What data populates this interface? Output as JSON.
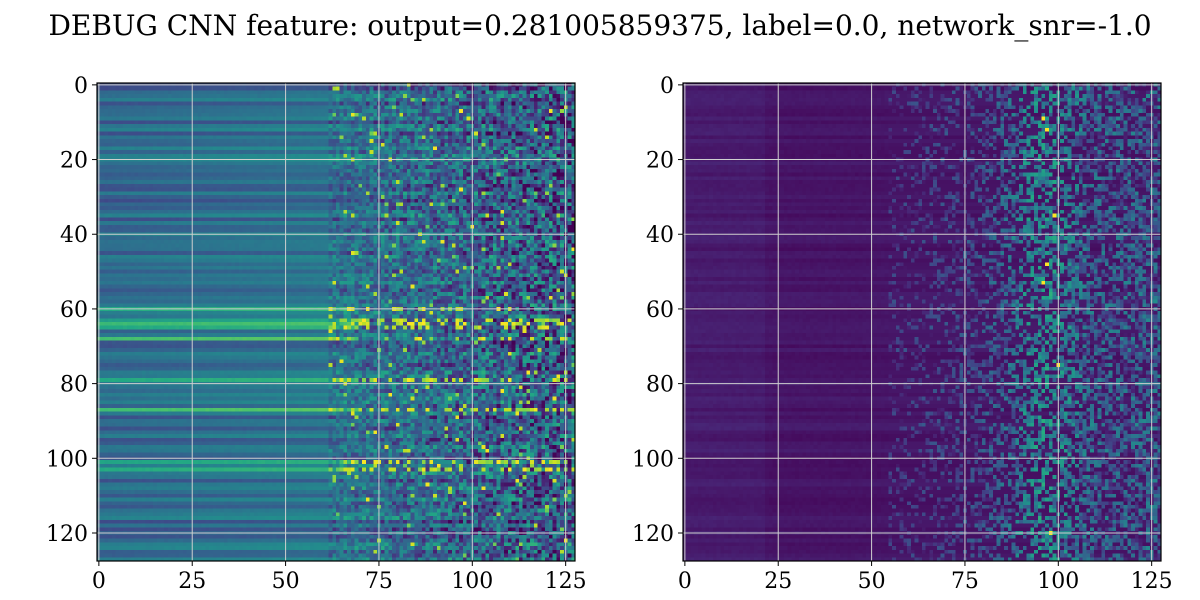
{
  "figure": {
    "title": "DEBUG CNN feature: output=0.281005859375, label=0.0, network_snr=-1.0"
  },
  "chart_data": [
    {
      "type": "heatmap",
      "title": "",
      "xlabel": "",
      "ylabel": "",
      "rows": 128,
      "cols": 128,
      "xlim": [
        0,
        127
      ],
      "ylim": [
        127,
        0
      ],
      "x_ticks": [
        0,
        25,
        50,
        75,
        100,
        125
      ],
      "y_ticks": [
        0,
        20,
        40,
        60,
        80,
        100,
        120
      ],
      "grid": true,
      "colormap": "viridis",
      "description_values": {
        "left_value_level": 0.35,
        "left_noise_start_col": 62,
        "right_value_level": 0.03,
        "right_noise_start_col": 55
      },
      "highlight_rows": [
        60,
        63,
        64,
        65,
        68,
        79,
        87,
        101,
        103
      ]
    },
    {
      "type": "heatmap",
      "title": "",
      "xlabel": "",
      "ylabel": "",
      "rows": 128,
      "cols": 128,
      "xlim": [
        0,
        127
      ],
      "ylim": [
        127,
        0
      ],
      "x_ticks": [
        0,
        25,
        50,
        75,
        100,
        125
      ],
      "y_ticks": [
        0,
        20,
        40,
        60,
        80,
        100,
        120
      ],
      "grid": true,
      "colormap": "viridis",
      "highlight_cells": [
        [
          96,
          9
        ],
        [
          97,
          12
        ],
        [
          99,
          35
        ],
        [
          97,
          48
        ],
        [
          96,
          53
        ],
        [
          100,
          75
        ],
        [
          98,
          120
        ]
      ]
    }
  ],
  "colors": {
    "viridis_low": "#440154",
    "viridis_mid": "#21918c",
    "viridis_high": "#fde725",
    "grid": "#cfcfcf",
    "frame": "#000000"
  }
}
